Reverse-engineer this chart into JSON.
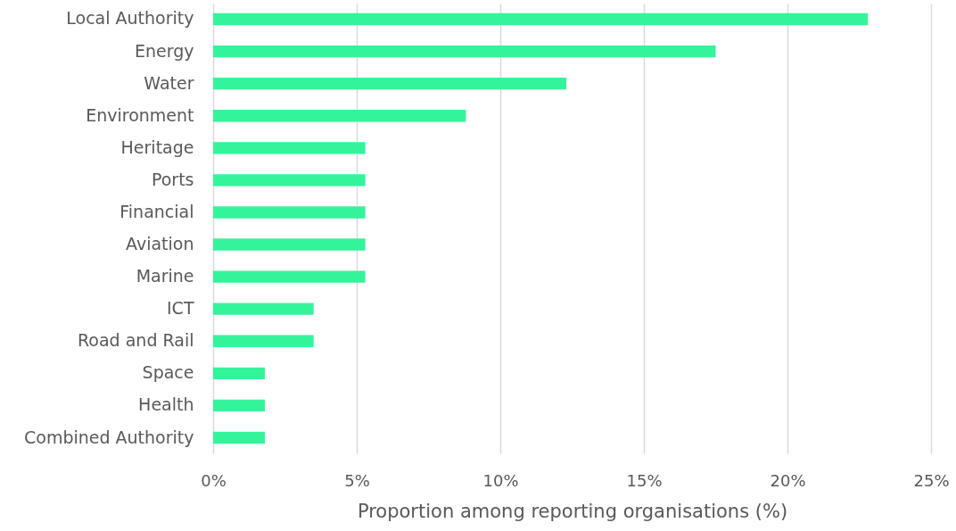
{
  "chart_data": {
    "type": "bar",
    "orientation": "horizontal",
    "xlabel": "Proportion among reporting organisations (%)",
    "categories": [
      "Local Authority",
      "Energy",
      "Water",
      "Environment",
      "Heritage",
      "Ports",
      "Financial",
      "Aviation",
      "Marine",
      "ICT",
      "Road and Rail",
      "Space",
      "Health",
      "Combined Authority"
    ],
    "values": [
      22.8,
      17.5,
      12.3,
      8.8,
      5.3,
      5.3,
      5.3,
      5.3,
      5.3,
      3.5,
      3.5,
      1.8,
      1.8,
      1.8
    ],
    "color": "#33f49a",
    "xlim": [
      0,
      25
    ],
    "xticks": [
      {
        "value": 0,
        "label": "0%"
      },
      {
        "value": 5,
        "label": "5%"
      },
      {
        "value": 10,
        "label": "10%"
      },
      {
        "value": 15,
        "label": "15%"
      },
      {
        "value": 20,
        "label": "20%"
      },
      {
        "value": 25,
        "label": "25%"
      }
    ],
    "grid": "x"
  }
}
